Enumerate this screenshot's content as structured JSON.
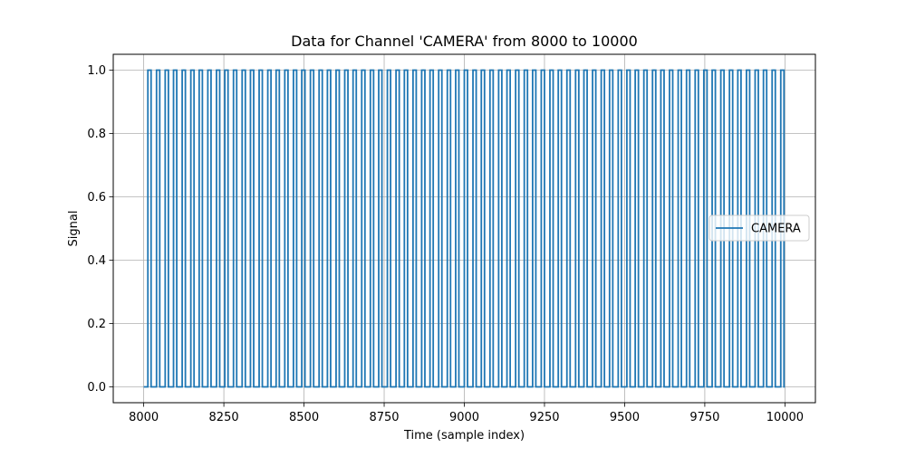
{
  "chart_data": {
    "type": "line",
    "title": "Data for Channel 'CAMERA' from 8000 to 10000",
    "xlabel": "Time (sample index)",
    "ylabel": "Signal",
    "xlim": [
      7905,
      10095
    ],
    "ylim": [
      -0.05,
      1.05
    ],
    "xticks": [
      8000,
      8250,
      8500,
      8750,
      9000,
      9250,
      9500,
      9750,
      10000
    ],
    "yticks": [
      0.0,
      0.2,
      0.4,
      0.6,
      0.8,
      1.0
    ],
    "xtick_labels": [
      "8000",
      "8250",
      "8500",
      "8750",
      "9000",
      "9250",
      "9500",
      "9750",
      "10000"
    ],
    "ytick_labels": [
      "0.0",
      "0.2",
      "0.4",
      "0.6",
      "0.8",
      "1.0"
    ],
    "grid": true,
    "legend_position": "center-right",
    "series": [
      {
        "name": "CAMERA",
        "color": "#1f77b4",
        "baseline": 0,
        "pulse_height": 1,
        "x_start": 8000,
        "x_end": 10000,
        "pulse_starts": [
          8013,
          8040,
          8067,
          8093,
          8120,
          8147,
          8173,
          8200,
          8227,
          8253,
          8280,
          8307,
          8333,
          8360,
          8387,
          8413,
          8440,
          8467,
          8493,
          8520,
          8547,
          8573,
          8600,
          8627,
          8653,
          8680,
          8707,
          8733,
          8760,
          8787,
          8813,
          8840,
          8867,
          8893,
          8920,
          8947,
          8973,
          9000,
          9027,
          9053,
          9080,
          9107,
          9133,
          9160,
          9187,
          9213,
          9240,
          9267,
          9293,
          9320,
          9347,
          9373,
          9400,
          9427,
          9453,
          9480,
          9507,
          9533,
          9560,
          9587,
          9613,
          9640,
          9667,
          9693,
          9720,
          9747,
          9773,
          9800,
          9827,
          9853,
          9880,
          9907,
          9933,
          9960,
          9987
        ],
        "pulse_width": 10
      }
    ]
  }
}
